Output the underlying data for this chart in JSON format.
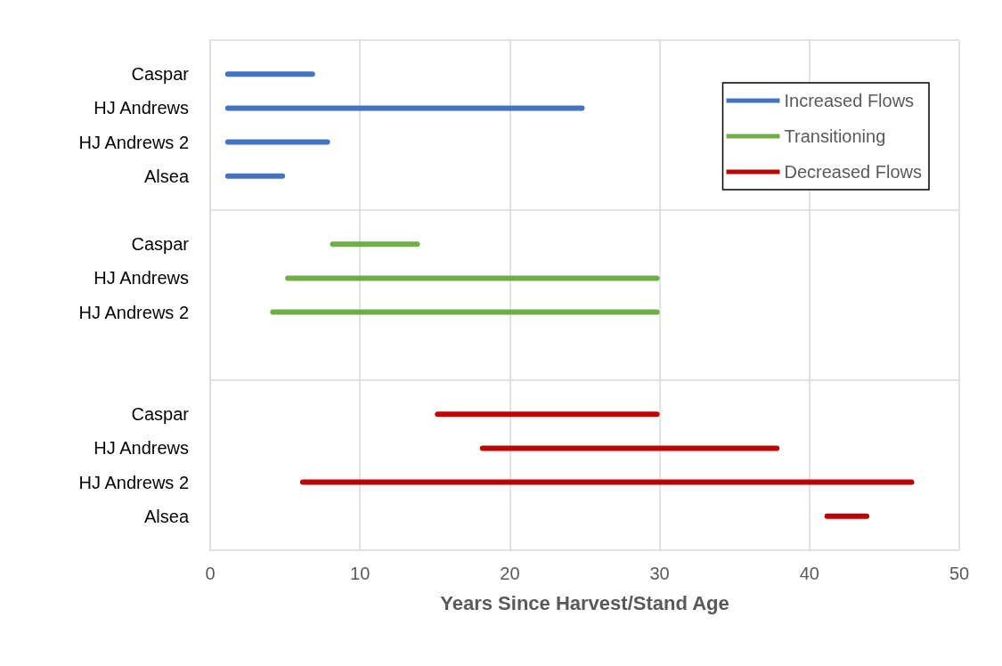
{
  "chart_data": {
    "type": "bar",
    "orientation": "horizontal",
    "xlabel": "Years Since Harvest/Stand Age",
    "categories": [
      null,
      "Caspar",
      "HJ Andrews",
      "HJ Andrews 2",
      "Alsea",
      null,
      "Caspar",
      "HJ Andrews",
      "HJ Andrews 2",
      null,
      null,
      "Caspar",
      "HJ Andrews",
      "HJ Andrews 2",
      "Alsea",
      null
    ],
    "series": [
      {
        "name": "Increased Flows",
        "color": "#4472c4",
        "base": [
          null,
          1,
          1,
          1,
          1,
          null,
          null,
          null,
          null,
          null,
          null,
          null,
          null,
          null,
          null,
          null
        ],
        "values": [
          null,
          6,
          24,
          7,
          4,
          null,
          null,
          null,
          null,
          null,
          null,
          null,
          null,
          null,
          null,
          null
        ]
      },
      {
        "name": "Transitioning",
        "color": "#70ad47",
        "base": [
          null,
          null,
          null,
          null,
          null,
          null,
          8,
          5,
          4,
          null,
          null,
          null,
          null,
          null,
          null,
          null
        ],
        "values": [
          null,
          null,
          null,
          null,
          null,
          null,
          6,
          25,
          26,
          null,
          null,
          null,
          null,
          null,
          null,
          null
        ]
      },
      {
        "name": "Decreased Flows",
        "color": "#c00000",
        "base": [
          null,
          null,
          null,
          null,
          null,
          null,
          null,
          null,
          null,
          null,
          null,
          15,
          18,
          6,
          41,
          null
        ],
        "values": [
          null,
          null,
          null,
          null,
          null,
          null,
          null,
          null,
          null,
          null,
          null,
          15,
          20,
          41,
          3,
          null
        ]
      }
    ],
    "xlim": [
      0,
      50
    ],
    "xticks": [
      0,
      10,
      20,
      30,
      40,
      50
    ],
    "grid": true,
    "legend": "top right"
  }
}
